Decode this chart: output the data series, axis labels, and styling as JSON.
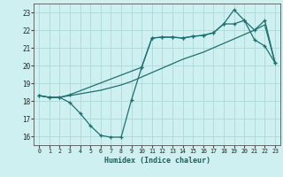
{
  "xlabel": "Humidex (Indice chaleur)",
  "bg_color": "#cff0f0",
  "grid_color": "#aed8d8",
  "line_color": "#1e7070",
  "xlim": [
    -0.5,
    23.5
  ],
  "ylim": [
    15.5,
    23.5
  ],
  "xticks": [
    0,
    1,
    2,
    3,
    4,
    5,
    6,
    7,
    8,
    9,
    10,
    11,
    12,
    13,
    14,
    15,
    16,
    17,
    18,
    19,
    20,
    21,
    22,
    23
  ],
  "yticks": [
    16,
    17,
    18,
    19,
    20,
    21,
    22,
    23
  ],
  "line1_x": [
    0,
    1,
    2,
    3,
    4,
    5,
    6,
    7,
    8,
    9,
    10,
    11,
    12,
    13,
    14,
    15,
    16,
    17,
    18,
    19,
    20,
    21,
    22,
    23
  ],
  "line1_y": [
    18.3,
    18.2,
    18.2,
    18.3,
    18.4,
    18.5,
    18.6,
    18.75,
    18.9,
    19.1,
    19.35,
    19.6,
    19.85,
    20.1,
    20.35,
    20.55,
    20.75,
    21.0,
    21.25,
    21.5,
    21.75,
    22.0,
    22.3,
    20.15
  ],
  "line2_x": [
    0,
    1,
    2,
    3,
    4,
    5,
    6,
    7,
    8,
    9,
    10,
    11,
    12,
    13,
    14,
    15,
    16,
    17,
    18,
    19,
    20,
    21,
    22,
    23
  ],
  "line2_y": [
    18.3,
    18.2,
    18.2,
    17.9,
    17.3,
    16.6,
    16.05,
    15.95,
    15.95,
    18.05,
    19.9,
    21.55,
    21.6,
    21.6,
    21.55,
    21.65,
    21.7,
    21.85,
    22.35,
    23.15,
    22.55,
    21.45,
    21.1,
    20.15
  ],
  "line3_x": [
    0,
    1,
    2,
    3,
    10,
    11,
    12,
    13,
    14,
    15,
    16,
    17,
    18,
    19,
    20,
    21,
    22,
    23
  ],
  "line3_y": [
    18.3,
    18.2,
    18.2,
    18.35,
    19.9,
    21.55,
    21.6,
    21.6,
    21.55,
    21.65,
    21.7,
    21.85,
    22.35,
    22.35,
    22.55,
    22.0,
    22.55,
    20.15
  ]
}
